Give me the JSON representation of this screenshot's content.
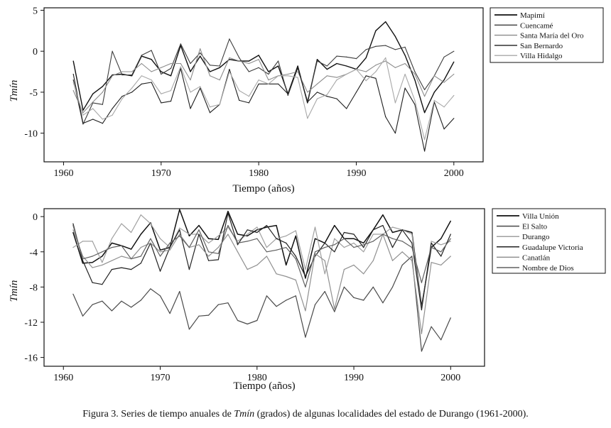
{
  "caption": {
    "before": "Figura 3. Series de tiempo anuales de ",
    "italic": "Tmín",
    "after": " (grados) de algunas localidades del estado de Durango (1961-2000)."
  },
  "chart_data": [
    {
      "type": "line",
      "xlabel": "Tiempo (años)",
      "ylabel": "Tmín",
      "xlim": [
        1958,
        2003
      ],
      "ylim": [
        -13.5,
        5.3
      ],
      "xticks": [
        1960,
        1970,
        1980,
        1990,
        2000
      ],
      "yticks": [
        5,
        0,
        -5,
        -10
      ],
      "grid": false,
      "legend": "right",
      "x": [
        1961,
        1962,
        1963,
        1964,
        1965,
        1966,
        1967,
        1968,
        1969,
        1970,
        1971,
        1972,
        1973,
        1974,
        1975,
        1976,
        1977,
        1978,
        1979,
        1980,
        1981,
        1982,
        1983,
        1984,
        1985,
        1986,
        1987,
        1988,
        1989,
        1990,
        1991,
        1992,
        1993,
        1994,
        1995,
        1996,
        1997,
        1998,
        1999,
        2000
      ],
      "series": [
        {
          "name": "Mapimí",
          "color": "#111111",
          "width": 1.4,
          "values": [
            -1.2,
            -7.2,
            -5.2,
            -4.3,
            -2.9,
            -2.8,
            -3.0,
            -0.6,
            -1.0,
            -2.5,
            -3.0,
            0.7,
            -2.5,
            -0.6,
            -2.5,
            -2.0,
            -1.0,
            -1.2,
            -1.2,
            -0.5,
            -2.5,
            -1.8,
            -5.2,
            -1.8,
            -6.3,
            -1.0,
            -2.2,
            -1.5,
            -1.8,
            -2.2,
            -0.8,
            2.5,
            3.6,
            1.8,
            -0.5,
            -3.5,
            -7.5,
            -5.0,
            -3.5,
            -1.3
          ]
        },
        {
          "name": "Cuencamé",
          "color": "#3c3c3c",
          "width": 1.1,
          "values": [
            -3.5,
            -8.9,
            -6.3,
            -6.5,
            0.0,
            -2.9,
            -2.9,
            -0.5,
            0.1,
            -2.8,
            -2.1,
            0.9,
            -1.5,
            -0.2,
            -1.7,
            -1.8,
            1.5,
            -0.8,
            -2.5,
            -2.0,
            -2.8,
            -1.2,
            -5.4,
            -2.0,
            -6.1,
            -1.2,
            -1.8,
            -0.6,
            -0.7,
            -0.9,
            0.2,
            0.6,
            0.7,
            0.2,
            0.5,
            -2.5,
            -4.7,
            -3.0,
            -0.7,
            0.0
          ]
        },
        {
          "name": "Santa María del Oro",
          "color": "#8c8c8c",
          "width": 1.1,
          "values": [
            -4.8,
            -7.5,
            -6.2,
            -5.0,
            -3.0,
            -2.5,
            -2.5,
            -1.5,
            -2.5,
            -2.0,
            -1.5,
            -1.5,
            -3.5,
            0.3,
            -3.0,
            -3.5,
            -0.8,
            -1.2,
            -1.5,
            -1.0,
            -3.5,
            -3.0,
            -2.8,
            -2.5,
            -5.0,
            -4.0,
            -3.0,
            -3.2,
            -2.8,
            -2.2,
            -2.5,
            -1.7,
            -1.2,
            -2.0,
            -1.5,
            -2.8,
            -5.5,
            -3.0,
            -3.8,
            -2.8
          ]
        },
        {
          "name": "San Bernardo",
          "color": "#1e1e1e",
          "width": 1.1,
          "values": [
            -2.8,
            -8.8,
            -8.3,
            -8.8,
            -7.0,
            -5.5,
            -5.0,
            -4.0,
            -3.8,
            -6.3,
            -6.1,
            -2.1,
            -7.0,
            -4.5,
            -7.5,
            -6.5,
            -2.2,
            -6.0,
            -6.3,
            -4.0,
            -4.0,
            -4.0,
            -5.2,
            -2.0,
            -6.2,
            -5.0,
            -5.5,
            -5.8,
            -7.0,
            -5.0,
            -3.0,
            -3.3,
            -8.0,
            -10.0,
            -4.5,
            -6.5,
            -12.2,
            -6.2,
            -9.5,
            -8.2
          ]
        },
        {
          "name": "Villa Hidalgo",
          "color": "#a8a8a8",
          "width": 1.1,
          "values": [
            -3.8,
            -7.8,
            -7.0,
            -8.3,
            -7.8,
            -5.8,
            -4.5,
            -3.0,
            -3.5,
            -5.2,
            -4.8,
            -1.9,
            -5.0,
            -4.3,
            -6.8,
            -6.5,
            -2.5,
            -4.8,
            -5.5,
            -3.5,
            -4.0,
            -3.0,
            -3.0,
            -3.2,
            -8.2,
            -5.8,
            -5.3,
            -3.5,
            -2.8,
            -2.2,
            -3.6,
            -2.5,
            -0.8,
            -6.3,
            -2.8,
            -6.0,
            -10.8,
            -6.0,
            -6.8,
            -5.4
          ]
        }
      ]
    },
    {
      "type": "line",
      "xlabel": "Tiempo (años)",
      "ylabel": "Tmín",
      "xlim": [
        1958,
        2003.5
      ],
      "ylim": [
        -17.0,
        0.9
      ],
      "xticks": [
        1960,
        1970,
        1980,
        1990,
        2000
      ],
      "yticks": [
        0,
        -4,
        -8,
        -12,
        -16
      ],
      "grid": false,
      "legend": "right",
      "x": [
        1961,
        1962,
        1963,
        1964,
        1965,
        1966,
        1967,
        1968,
        1969,
        1970,
        1971,
        1972,
        1973,
        1974,
        1975,
        1976,
        1977,
        1978,
        1979,
        1980,
        1981,
        1982,
        1983,
        1984,
        1985,
        1986,
        1987,
        1988,
        1989,
        1990,
        1991,
        1992,
        1993,
        1994,
        1995,
        1996,
        1997,
        1998,
        1999,
        2000
      ],
      "series": [
        {
          "name": "Villa Unión",
          "color": "#111111",
          "width": 1.5,
          "values": [
            -1.8,
            -5.3,
            -5.2,
            -4.5,
            -3.0,
            -3.3,
            -3.7,
            -2.0,
            -0.7,
            -3.8,
            -3.5,
            0.8,
            -2.2,
            -1.0,
            -2.5,
            -2.6,
            0.6,
            -2.0,
            -2.2,
            -1.5,
            -1.2,
            -1.0,
            -5.5,
            -2.2,
            -7.0,
            -2.5,
            -3.0,
            -1.0,
            -2.5,
            -2.5,
            -3.0,
            -1.5,
            0.2,
            -1.8,
            -1.5,
            -1.8,
            -10.2,
            -3.5,
            -2.5,
            -0.5
          ]
        },
        {
          "name": "El Salto",
          "color": "#4a4a4a",
          "width": 1.2,
          "values": [
            -8.8,
            -11.3,
            -10.0,
            -9.6,
            -10.7,
            -9.6,
            -10.3,
            -9.5,
            -8.2,
            -9.0,
            -11.0,
            -8.5,
            -12.8,
            -11.3,
            -11.2,
            -10.0,
            -9.8,
            -11.8,
            -12.2,
            -11.8,
            -9.0,
            -10.2,
            -9.5,
            -9.0,
            -13.7,
            -10.0,
            -8.5,
            -10.8,
            -8.0,
            -9.2,
            -9.5,
            -8.0,
            -9.8,
            -8.0,
            -5.5,
            -4.5,
            -15.3,
            -12.5,
            -14.0,
            -11.5
          ]
        },
        {
          "name": "Durango",
          "color": "#a0a0a0",
          "width": 1.2,
          "values": [
            -3.5,
            -2.8,
            -2.8,
            -5.2,
            -2.5,
            -0.8,
            -1.8,
            0.2,
            -0.8,
            -2.5,
            -3.5,
            -1.3,
            -2.0,
            -2.0,
            -3.0,
            -2.2,
            -1.2,
            -2.8,
            -2.0,
            -1.2,
            -3.5,
            -2.5,
            -2.2,
            -1.6,
            -6.0,
            -1.2,
            -6.5,
            -2.5,
            -3.5,
            -3.0,
            -4.0,
            -2.0,
            -2.0,
            -1.2,
            -1.5,
            -2.0,
            -10.5,
            -2.8,
            -3.2,
            -2.8
          ]
        },
        {
          "name": "Guadalupe Victoria",
          "color": "#222222",
          "width": 1.2,
          "values": [
            -0.8,
            -5.0,
            -7.5,
            -7.7,
            -6.0,
            -5.8,
            -6.0,
            -5.3,
            -3.0,
            -6.2,
            -3.5,
            -1.5,
            -6.0,
            -2.0,
            -5.0,
            -4.9,
            0.4,
            -3.2,
            -1.5,
            -1.8,
            -1.0,
            -2.5,
            -3.0,
            -4.5,
            -6.8,
            -4.5,
            -3.0,
            -4.0,
            -1.8,
            -2.0,
            -3.5,
            -1.5,
            -1.0,
            -3.5,
            -1.5,
            -3.0,
            -10.6,
            -3.0,
            -4.5,
            -2.0
          ]
        },
        {
          "name": "Canatlán",
          "color": "#909090",
          "width": 1.2,
          "values": [
            -1.5,
            -4.5,
            -5.8,
            -5.5,
            -5.0,
            -4.5,
            -4.8,
            -3.5,
            -3.0,
            -4.0,
            -3.8,
            -2.0,
            -3.5,
            -3.2,
            -4.5,
            -3.5,
            -2.0,
            -4.0,
            -6.0,
            -5.5,
            -4.5,
            -6.5,
            -6.8,
            -7.2,
            -10.7,
            -4.2,
            -5.0,
            -10.5,
            -6.0,
            -5.5,
            -6.5,
            -5.0,
            -2.0,
            -5.0,
            -4.0,
            -5.0,
            -13.3,
            -5.2,
            -5.5,
            -4.5
          ]
        },
        {
          "name": "Nombre de Dios",
          "color": "#606060",
          "width": 1.2,
          "values": [
            -1.0,
            -4.8,
            -4.5,
            -4.0,
            -3.5,
            -3.3,
            -4.8,
            -4.5,
            -2.5,
            -4.5,
            -3.0,
            -2.2,
            -3.5,
            -1.5,
            -4.0,
            -4.2,
            -1.0,
            -3.0,
            -2.8,
            -2.5,
            -4.0,
            -3.8,
            -3.5,
            -4.8,
            -8.0,
            -4.0,
            -3.5,
            -3.2,
            -2.5,
            -3.5,
            -3.2,
            -2.8,
            -2.0,
            -2.5,
            -2.8,
            -3.5,
            -7.5,
            -3.5,
            -4.0,
            -2.5
          ]
        }
      ]
    }
  ]
}
